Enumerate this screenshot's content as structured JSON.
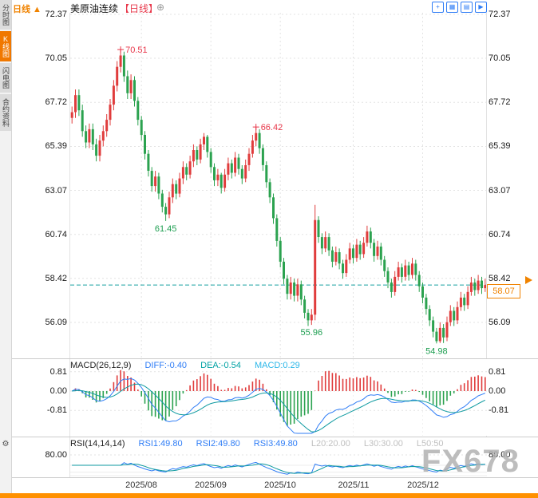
{
  "header": {
    "title": "美原油连续",
    "period_tag": "【日线】",
    "add_icon": "⊕",
    "toolbar_icons": [
      {
        "name": "crosshair",
        "glyph": "+"
      },
      {
        "name": "grid-chart",
        "glyph": "▦"
      },
      {
        "name": "line-chart",
        "glyph": "▤"
      },
      {
        "name": "step-forward",
        "glyph": "▶"
      }
    ]
  },
  "sidebar": {
    "items": [
      {
        "label": "分时图",
        "active": false
      },
      {
        "label": "K线图",
        "active": true
      },
      {
        "label": "闪电图",
        "active": false
      },
      {
        "label": "合约资料",
        "active": false
      }
    ],
    "gear_icon": "⚙"
  },
  "colors": {
    "accent": "#f08300",
    "up": "#e03c3c",
    "down": "#2ba24f",
    "ann_high": "#e8374a",
    "ann_low": "#1d9e50",
    "diff_line": "#2f7df6",
    "dea_line": "#0e9aa0",
    "last_price_line": "#18a0a0",
    "grid": "#e3e3e3"
  },
  "chart_data": {
    "type": "candlestick",
    "title": "美原油连续",
    "period": "日线",
    "ylim": [
      54.2,
      72.45
    ],
    "y_ticks": [
      72.37,
      70.05,
      67.72,
      65.39,
      63.07,
      60.74,
      58.42,
      56.09
    ],
    "x_labels": [
      "2025/08",
      "2025/09",
      "2025/10",
      "2025/11",
      "2025/12"
    ],
    "month_start_bars": [
      20,
      40,
      60,
      81,
      101
    ],
    "last_price": 58.07,
    "up_color": "#e03c3c",
    "down_color": "#2ba24f",
    "annotations": [
      {
        "bar": 14,
        "price": 70.51,
        "text": "70.51",
        "kind": "high"
      },
      {
        "bar": 53,
        "price": 66.42,
        "text": "66.42",
        "kind": "high"
      },
      {
        "bar": 27,
        "price": 61.45,
        "text": "61.45",
        "kind": "low"
      },
      {
        "bar": 69,
        "price": 55.96,
        "text": "55.96",
        "kind": "low"
      },
      {
        "bar": 105,
        "price": 54.98,
        "text": "54.98",
        "kind": "low"
      }
    ],
    "candles": [
      [
        66.9,
        67.5,
        66.6,
        67.2
      ],
      [
        67.2,
        68.4,
        66.9,
        68.1
      ],
      [
        68.1,
        68.4,
        67.0,
        67.3
      ],
      [
        67.3,
        67.6,
        65.9,
        66.2
      ],
      [
        66.2,
        66.5,
        65.3,
        65.6
      ],
      [
        65.6,
        66.6,
        65.3,
        66.3
      ],
      [
        66.3,
        66.6,
        65.2,
        65.5
      ],
      [
        65.5,
        65.8,
        64.6,
        64.9
      ],
      [
        64.9,
        66.0,
        64.6,
        65.7
      ],
      [
        65.7,
        66.5,
        65.4,
        66.2
      ],
      [
        66.2,
        67.1,
        65.9,
        66.8
      ],
      [
        66.8,
        67.9,
        66.5,
        67.6
      ],
      [
        67.6,
        68.9,
        67.3,
        68.6
      ],
      [
        68.6,
        69.9,
        68.3,
        69.6
      ],
      [
        69.6,
        70.51,
        69.3,
        70.2
      ],
      [
        70.2,
        70.4,
        68.8,
        69.1
      ],
      [
        69.1,
        69.4,
        67.9,
        68.2
      ],
      [
        68.2,
        69.2,
        67.9,
        68.9
      ],
      [
        68.9,
        69.1,
        67.5,
        67.8
      ],
      [
        67.8,
        68.0,
        66.5,
        66.8
      ],
      [
        66.8,
        67.0,
        65.7,
        66.0
      ],
      [
        66.0,
        66.2,
        64.7,
        65.0
      ],
      [
        65.0,
        65.2,
        63.8,
        64.1
      ],
      [
        64.1,
        64.3,
        63.0,
        63.3
      ],
      [
        63.3,
        64.1,
        63.0,
        63.8
      ],
      [
        63.8,
        64.0,
        62.6,
        62.9
      ],
      [
        62.9,
        63.1,
        61.9,
        62.2
      ],
      [
        62.2,
        62.4,
        61.45,
        61.8
      ],
      [
        61.8,
        63.0,
        61.6,
        62.7
      ],
      [
        62.7,
        63.7,
        62.4,
        63.4
      ],
      [
        63.4,
        63.6,
        62.6,
        62.9
      ],
      [
        62.9,
        64.0,
        62.7,
        63.7
      ],
      [
        63.7,
        64.6,
        63.4,
        64.3
      ],
      [
        64.3,
        64.5,
        63.6,
        63.9
      ],
      [
        63.9,
        64.9,
        63.7,
        64.6
      ],
      [
        64.6,
        65.5,
        64.3,
        65.2
      ],
      [
        65.2,
        65.4,
        64.4,
        64.7
      ],
      [
        64.7,
        65.8,
        64.5,
        65.5
      ],
      [
        65.5,
        66.1,
        65.2,
        65.9
      ],
      [
        65.9,
        66.0,
        64.8,
        65.1
      ],
      [
        65.1,
        65.3,
        64.0,
        64.3
      ],
      [
        64.3,
        64.5,
        63.3,
        63.6
      ],
      [
        63.6,
        64.2,
        63.3,
        63.9
      ],
      [
        63.9,
        64.0,
        62.9,
        63.2
      ],
      [
        63.2,
        64.2,
        63.0,
        63.9
      ],
      [
        63.9,
        64.8,
        63.6,
        64.5
      ],
      [
        64.5,
        64.7,
        63.7,
        64.0
      ],
      [
        64.0,
        65.1,
        63.8,
        64.8
      ],
      [
        64.8,
        65.0,
        63.9,
        64.2
      ],
      [
        64.2,
        64.4,
        63.4,
        63.7
      ],
      [
        63.7,
        64.7,
        63.5,
        64.4
      ],
      [
        64.4,
        65.3,
        64.1,
        65.0
      ],
      [
        65.0,
        66.0,
        64.8,
        65.7
      ],
      [
        65.7,
        66.42,
        65.4,
        66.1
      ],
      [
        66.1,
        66.3,
        65.0,
        65.3
      ],
      [
        65.3,
        65.5,
        64.1,
        64.4
      ],
      [
        64.4,
        64.6,
        63.2,
        63.5
      ],
      [
        63.5,
        63.7,
        62.4,
        62.7
      ],
      [
        62.7,
        62.9,
        61.3,
        61.6
      ],
      [
        61.6,
        61.8,
        60.1,
        60.4
      ],
      [
        60.4,
        60.6,
        59.0,
        59.3
      ],
      [
        59.3,
        59.5,
        58.1,
        58.4
      ],
      [
        58.4,
        58.6,
        57.3,
        57.6
      ],
      [
        57.6,
        58.5,
        57.3,
        58.2
      ],
      [
        58.2,
        58.4,
        57.2,
        57.5
      ],
      [
        57.5,
        58.4,
        57.2,
        58.1
      ],
      [
        58.1,
        58.3,
        57.0,
        57.3
      ],
      [
        57.3,
        57.5,
        56.3,
        56.6
      ],
      [
        56.6,
        56.8,
        55.9,
        56.2
      ],
      [
        56.2,
        56.8,
        55.96,
        56.5
      ],
      [
        56.5,
        62.3,
        56.2,
        61.5
      ],
      [
        61.5,
        61.7,
        60.3,
        60.6
      ],
      [
        60.6,
        60.8,
        59.7,
        60.0
      ],
      [
        60.0,
        60.9,
        59.8,
        60.6
      ],
      [
        60.6,
        60.8,
        59.6,
        59.9
      ],
      [
        59.9,
        60.1,
        59.0,
        59.3
      ],
      [
        59.3,
        60.1,
        59.1,
        59.8
      ],
      [
        59.8,
        60.0,
        58.9,
        59.2
      ],
      [
        59.2,
        59.4,
        58.4,
        58.7
      ],
      [
        58.7,
        59.7,
        58.5,
        59.4
      ],
      [
        59.4,
        60.3,
        59.2,
        60.0
      ],
      [
        60.0,
        60.2,
        59.2,
        59.5
      ],
      [
        59.5,
        60.5,
        59.3,
        60.2
      ],
      [
        60.2,
        60.4,
        59.4,
        59.7
      ],
      [
        59.7,
        60.6,
        59.5,
        60.3
      ],
      [
        60.3,
        61.2,
        60.1,
        60.9
      ],
      [
        60.9,
        61.1,
        60.0,
        60.3
      ],
      [
        60.3,
        60.5,
        59.3,
        59.6
      ],
      [
        59.6,
        60.4,
        59.4,
        60.1
      ],
      [
        60.1,
        60.3,
        59.1,
        59.4
      ],
      [
        59.4,
        59.6,
        58.5,
        58.8
      ],
      [
        58.8,
        59.0,
        57.9,
        58.2
      ],
      [
        58.2,
        58.4,
        57.4,
        57.7
      ],
      [
        57.7,
        58.8,
        57.5,
        58.5
      ],
      [
        58.5,
        59.3,
        58.3,
        59.0
      ],
      [
        59.0,
        59.2,
        58.2,
        58.5
      ],
      [
        58.5,
        59.4,
        58.3,
        59.1
      ],
      [
        59.1,
        59.3,
        58.3,
        58.6
      ],
      [
        58.6,
        59.5,
        58.4,
        59.2
      ],
      [
        59.2,
        59.4,
        58.3,
        58.6
      ],
      [
        58.6,
        58.8,
        57.7,
        58.0
      ],
      [
        58.0,
        58.2,
        57.1,
        57.4
      ],
      [
        57.4,
        57.6,
        56.5,
        56.8
      ],
      [
        56.8,
        57.0,
        55.9,
        56.2
      ],
      [
        56.2,
        56.4,
        55.3,
        55.6
      ],
      [
        55.6,
        55.8,
        54.98,
        55.1
      ],
      [
        55.1,
        56.1,
        55.0,
        55.8
      ],
      [
        55.8,
        56.0,
        55.0,
        55.3
      ],
      [
        55.3,
        56.4,
        55.1,
        56.1
      ],
      [
        56.1,
        57.0,
        55.9,
        56.7
      ],
      [
        56.7,
        56.9,
        55.9,
        56.2
      ],
      [
        56.2,
        57.2,
        56.0,
        56.9
      ],
      [
        56.9,
        57.7,
        56.7,
        57.4
      ],
      [
        57.4,
        57.6,
        56.7,
        57.0
      ],
      [
        57.0,
        58.0,
        56.8,
        57.7
      ],
      [
        57.7,
        58.5,
        57.5,
        58.2
      ],
      [
        58.2,
        58.4,
        57.5,
        57.8
      ],
      [
        57.8,
        58.6,
        57.6,
        58.3
      ],
      [
        58.3,
        58.5,
        57.6,
        57.9
      ],
      [
        57.9,
        58.4,
        57.7,
        58.07
      ]
    ]
  },
  "indicators": {
    "macd": {
      "label": "MACD(26,12,9)",
      "diff_label": "DIFF:-0.40",
      "dea_label": "DEA:-0.54",
      "macd_label": "MACD:0.29",
      "ticks": [
        "0.81",
        "0.00",
        "-0.81"
      ]
    },
    "rsi": {
      "label": "RSI(14,14,14)",
      "rsi1_label": "RSI1:49.80",
      "rsi2_label": "RSI2:49.80",
      "rsi3_label": "RSI3:49.80",
      "l20_label": "L20:20.00",
      "l30_label": "L30:30.00",
      "l50_label": "L50:50",
      "tick": "80.00"
    }
  },
  "price_box": {
    "value": "58.07"
  },
  "footer": {
    "period_label": "日线",
    "arrow_icon": "▲"
  },
  "watermark": "FX678"
}
